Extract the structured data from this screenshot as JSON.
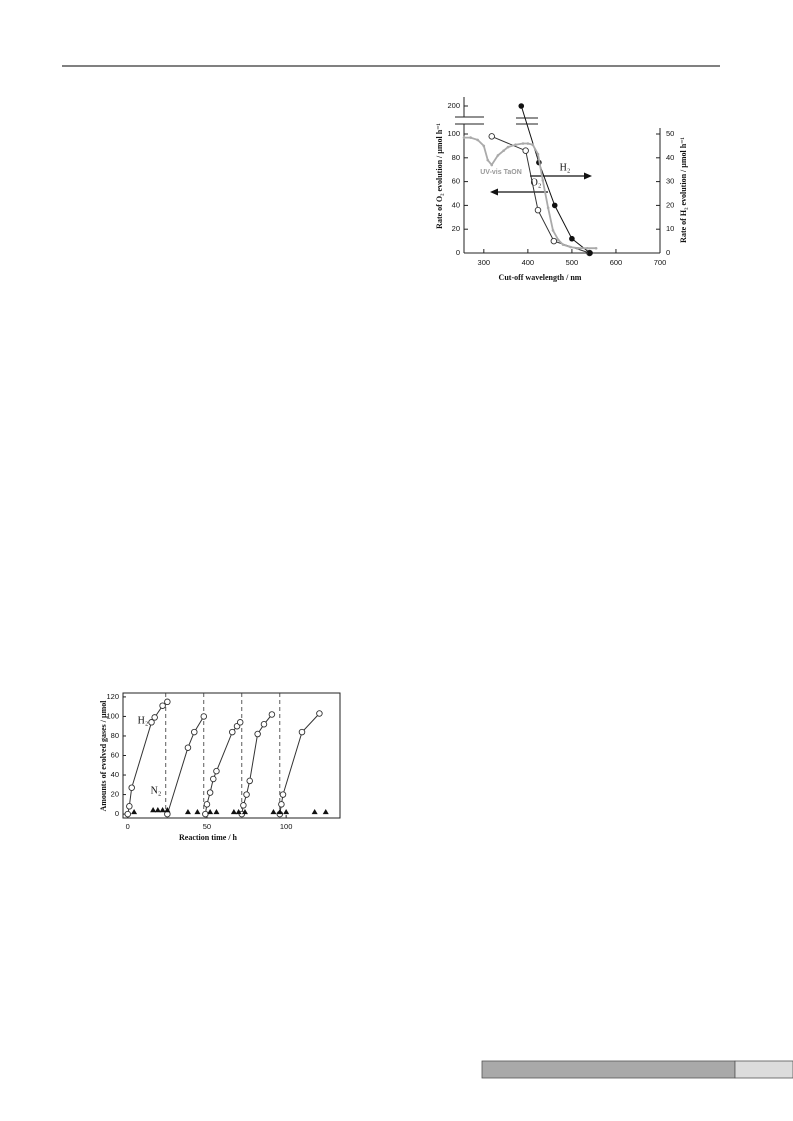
{
  "chart_data": [
    {
      "type": "line",
      "xlabel": "Cut-off wavelength / nm",
      "ylabel": "Rate of O₂ evolution / µmol h⁻¹",
      "y2label": "Rate of H₂ evolution / µmol h⁻¹",
      "xlim": [
        255,
        700
      ],
      "xticks": [
        300,
        400,
        500,
        600,
        700
      ],
      "ylim": [
        0,
        200
      ],
      "yticks": [
        0,
        20,
        40,
        60,
        80,
        100,
        200
      ],
      "axis_break": true,
      "y2lim": [
        0,
        50
      ],
      "y2ticks": [
        0,
        10,
        20,
        30,
        40,
        50
      ],
      "series": [
        {
          "name": "O₂",
          "color": "#333333",
          "marker": "open-circle",
          "axis": "y",
          "x": [
            318,
            395,
            423,
            459,
            540
          ],
          "values": [
            98,
            86,
            36,
            10,
            0
          ]
        },
        {
          "name": "H₂",
          "color": "#111111",
          "marker": "filled-circle",
          "axis": "y2",
          "x": [
            385,
            425,
            461,
            500,
            541
          ],
          "values": [
            100,
            38,
            20,
            6,
            0
          ]
        },
        {
          "name": "UV-vis TaON",
          "color": "#aaaaaa",
          "marker": "dot",
          "axis": "y",
          "x": [
            255,
            270,
            286,
            300,
            309,
            318,
            332,
            345,
            355,
            372,
            389,
            400,
            411,
            423,
            434,
            446,
            457,
            469,
            480,
            497,
            514,
            535,
            555
          ],
          "values": [
            97,
            97,
            95,
            90,
            78,
            74,
            82,
            86,
            89,
            91,
            92,
            92,
            91,
            83,
            61,
            38,
            19,
            11,
            7,
            5,
            4,
            4,
            4
          ]
        }
      ]
    },
    {
      "type": "scatter",
      "xlabel": "Reaction time / h",
      "ylabel": "Amounts of evolved gases / µmol",
      "xlim": [
        -3,
        134
      ],
      "xticks": [
        0,
        50,
        100
      ],
      "ylim": [
        -4,
        124
      ],
      "yticks": [
        0,
        20,
        40,
        60,
        80,
        100,
        120
      ],
      "dividers": [
        24,
        48,
        72,
        96
      ],
      "series": [
        {
          "name": "H₂",
          "color": "#333333",
          "marker": "open-circle",
          "line": true,
          "x": [
            0,
            1,
            2.5,
            15,
            17,
            22,
            25,
            null,
            25,
            38,
            42,
            48,
            null,
            49,
            50,
            52,
            54,
            56,
            66,
            69,
            71,
            null,
            72,
            73,
            75,
            77,
            82,
            86,
            91,
            null,
            96,
            97,
            98,
            110,
            121
          ],
          "values": [
            0,
            8,
            27,
            94,
            99,
            111,
            115,
            null,
            0,
            68,
            84,
            100,
            null,
            0,
            10,
            22,
            36,
            44,
            84,
            90,
            94,
            null,
            0,
            9,
            20,
            34,
            82,
            92,
            102,
            null,
            0,
            10,
            20,
            84,
            103
          ]
        },
        {
          "name": "N₂",
          "color": "#111111",
          "marker": "triangle",
          "line": false,
          "x": [
            4,
            16,
            19,
            22,
            25,
            38,
            44,
            52,
            56,
            67,
            70,
            74,
            92,
            96,
            100,
            118,
            125
          ],
          "values": [
            2,
            4,
            4,
            4,
            4,
            2,
            2,
            2,
            2,
            2,
            2,
            2,
            2,
            2,
            2,
            2,
            2
          ]
        }
      ]
    }
  ]
}
